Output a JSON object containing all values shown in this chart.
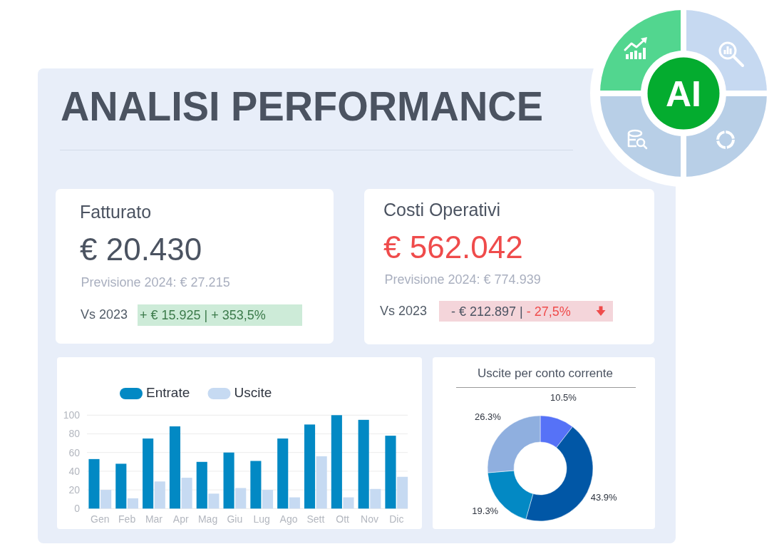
{
  "chart_data": [
    {
      "type": "other",
      "title": "ANALISI PERFORMANCE",
      "annotations": [
        "AI"
      ]
    },
    {
      "type": "other",
      "title": "Fatturato",
      "annotations": [
        "€ 20.430",
        "Previsione 2024: € 27.215",
        "Vs 2023",
        "+ € 15.925 | + 353,5%"
      ]
    },
    {
      "type": "other",
      "title": "Costi Operativi",
      "annotations": [
        "€ 562.042",
        "Previsione 2024: € 774.939",
        "Vs 2023",
        "- € 212.897 |",
        "- 27,5%"
      ]
    },
    {
      "type": "bar",
      "categories": [
        "Gen",
        "Feb",
        "Mar",
        "Apr",
        "Mag",
        "Giu",
        "Lug",
        "Ago",
        "Sett",
        "Ott",
        "Nov",
        "Dic"
      ],
      "series": [
        {
          "name": "Entrate",
          "color": "#0289c4",
          "values": [
            53,
            48,
            75,
            88,
            50,
            60,
            51,
            75,
            90,
            100,
            95,
            78
          ]
        },
        {
          "name": "Uscite",
          "color": "#c6daf2",
          "values": [
            20,
            11,
            29,
            33,
            16,
            22,
            20,
            12,
            56,
            12,
            21,
            34
          ]
        }
      ],
      "ylim": [
        0,
        100
      ],
      "yticks": [
        0,
        20,
        40,
        60,
        80,
        100
      ],
      "grid": "y",
      "legend": "top"
    },
    {
      "type": "donut",
      "title": "Uscite per conto corrente",
      "categories": [
        null,
        null,
        null,
        null
      ],
      "values": [
        10.5,
        43.9,
        19.3,
        26.3
      ],
      "colors": [
        "#5672f7",
        "#0157a6",
        "#0389c4",
        "#8fafdf"
      ],
      "value_labels": [
        "10.5%",
        "43.9%",
        "19.3%",
        "26.3%"
      ]
    }
  ]
}
